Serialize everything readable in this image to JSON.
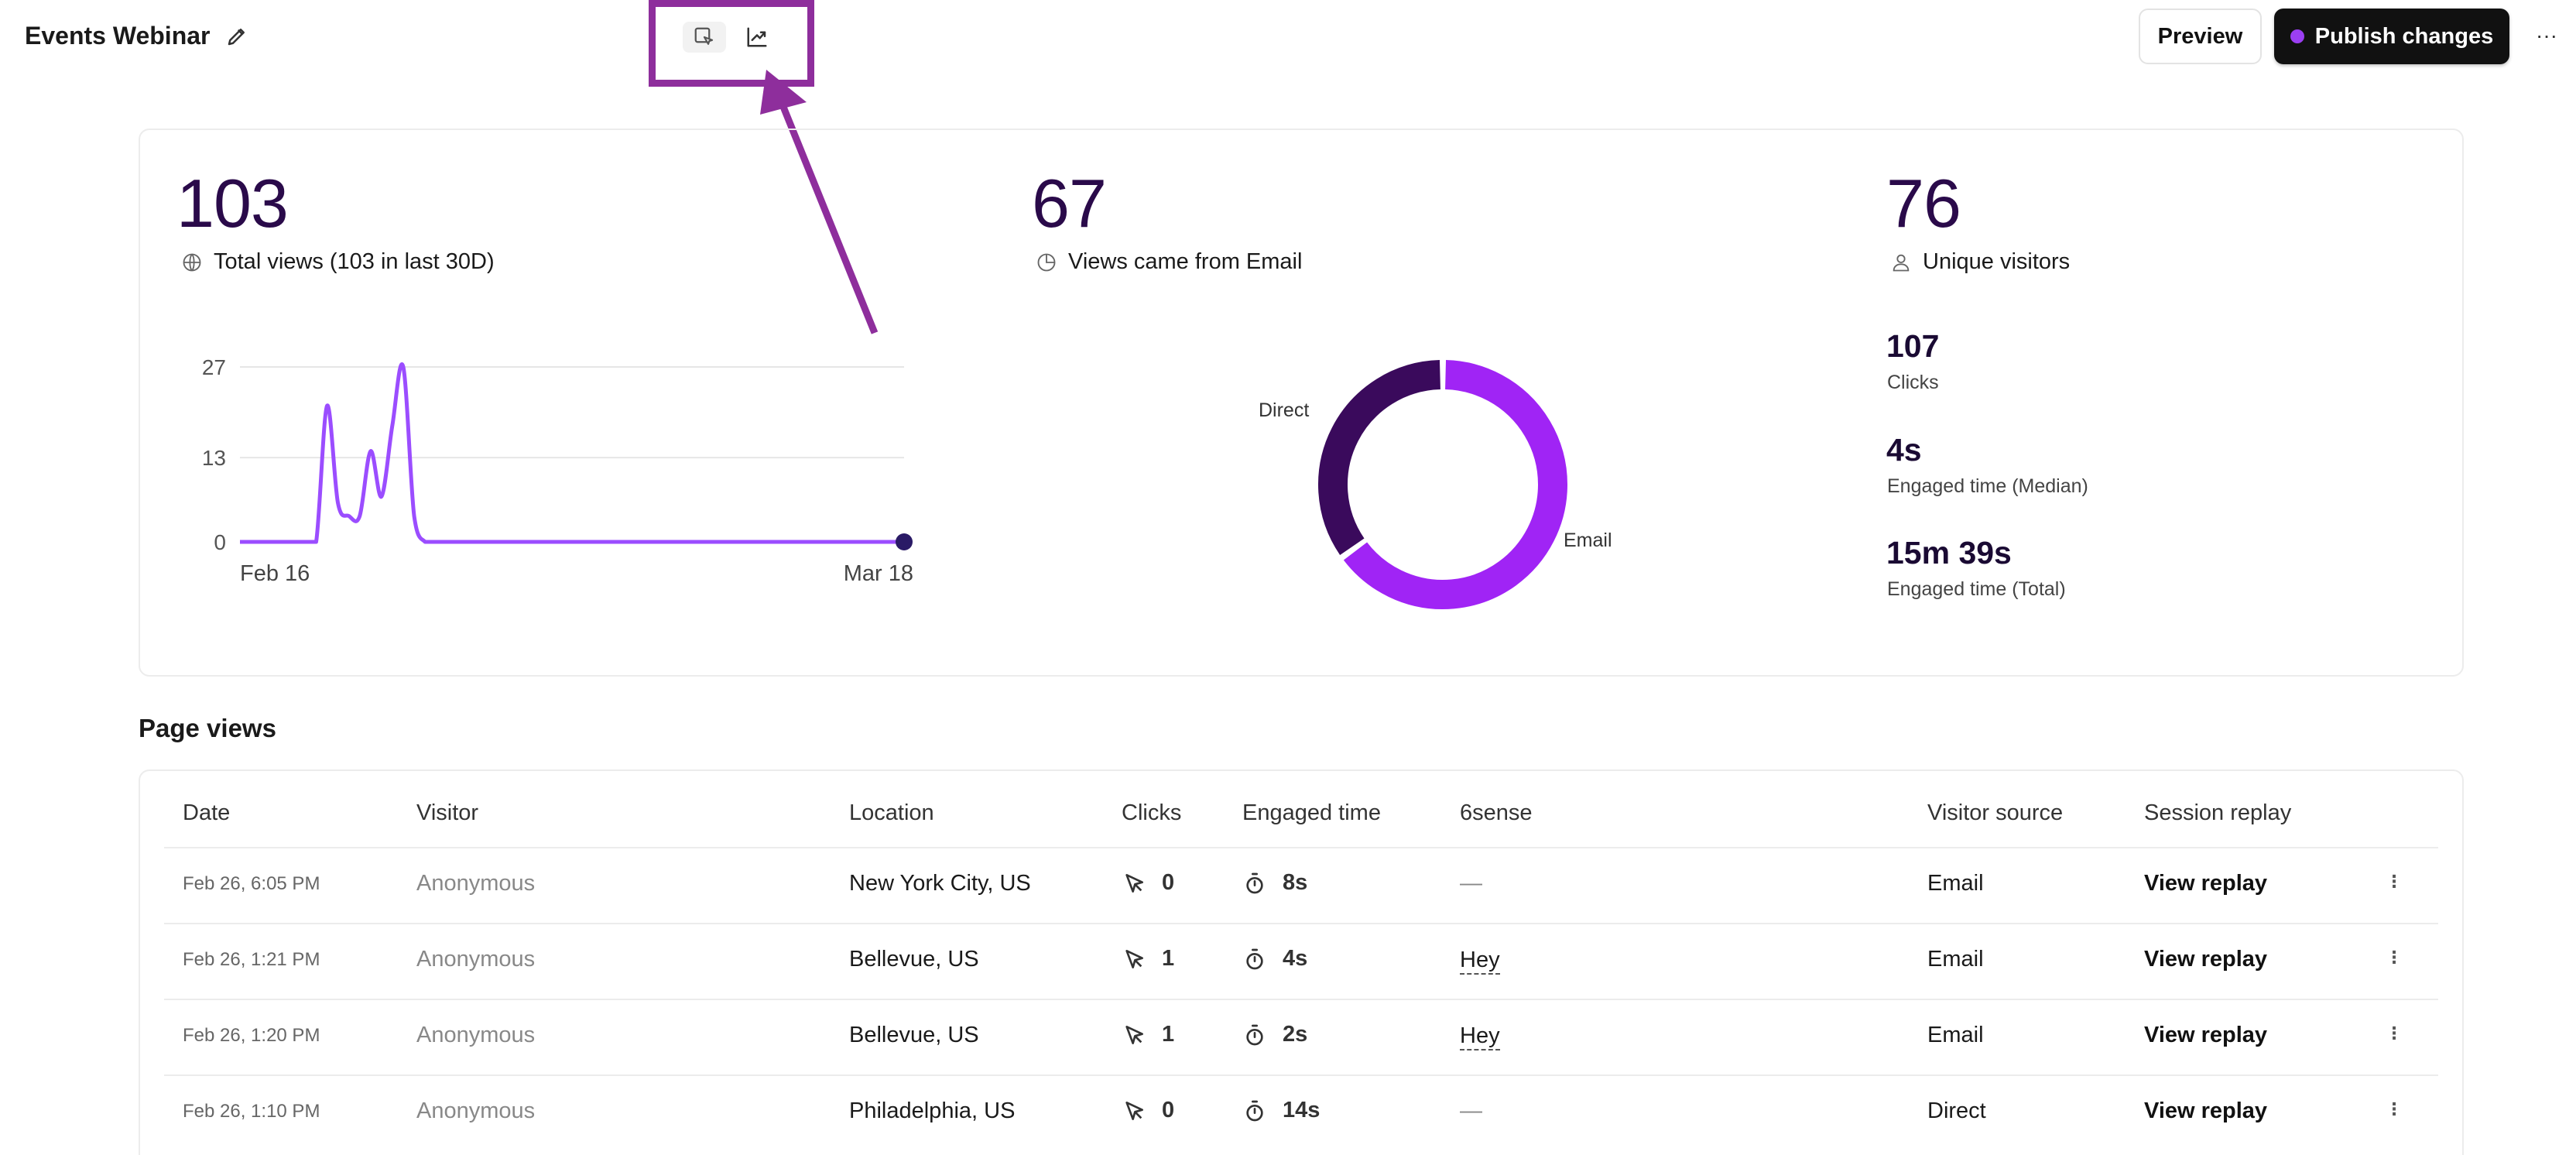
{
  "header": {
    "title": "Events Webinar",
    "preview_label": "Preview",
    "publish_label": "Publish changes",
    "more_label": "···"
  },
  "stats": {
    "total_views": {
      "value": "103",
      "label": "Total views (103 in last 30D)"
    },
    "email_views": {
      "value": "67",
      "label": "Views came from Email"
    },
    "unique_visitors": {
      "value": "76",
      "label": "Unique visitors"
    }
  },
  "chart_data": [
    {
      "type": "line",
      "x_start_label": "Feb 16",
      "x_end_label": "Mar 18",
      "y_ticks": [
        "27",
        "13",
        "0"
      ],
      "ylim": [
        0,
        27
      ],
      "series": [
        {
          "values": [
            0,
            0,
            0,
            0,
            0,
            0,
            0,
            0,
            21,
            6,
            4,
            4,
            14,
            7,
            18,
            27,
            4,
            0,
            0,
            0,
            0,
            0,
            0,
            0,
            0,
            0,
            0,
            0,
            0,
            0,
            0,
            0,
            0,
            0,
            0,
            0,
            0,
            0,
            0,
            0,
            0,
            0,
            0,
            0,
            0,
            0,
            0,
            0,
            0,
            0,
            0,
            0,
            0,
            0,
            0,
            0,
            0,
            0,
            0,
            0,
            0,
            0
          ]
        }
      ],
      "color": "#9b4dff",
      "end_marker_color": "#2a1a66"
    },
    {
      "type": "pie",
      "categories": [
        "Email",
        "Direct"
      ],
      "values": [
        67,
        36
      ],
      "colors": [
        "#a024f5",
        "#3a0a5c"
      ],
      "labels": [
        "Email",
        "Direct"
      ]
    }
  ],
  "metrics": [
    {
      "value": "107",
      "label": "Clicks"
    },
    {
      "value": "4s",
      "label": "Engaged time (Median)"
    },
    {
      "value": "15m 39s",
      "label": "Engaged time (Total)"
    }
  ],
  "page_views": {
    "title": "Page views",
    "columns": [
      "Date",
      "Visitor",
      "Location",
      "Clicks",
      "Engaged time",
      "6sense",
      "Visitor source",
      "Session replay"
    ],
    "rows": [
      {
        "date": "Feb 26, 6:05 PM",
        "visitor": "Anonymous",
        "location": "New York City, US",
        "clicks": "0",
        "engaged": "8s",
        "sixsense": "—",
        "source": "Email",
        "replay": "View replay"
      },
      {
        "date": "Feb 26, 1:21 PM",
        "visitor": "Anonymous",
        "location": "Bellevue, US",
        "clicks": "1",
        "engaged": "4s",
        "sixsense": "Hey",
        "source": "Email",
        "replay": "View replay"
      },
      {
        "date": "Feb 26, 1:20 PM",
        "visitor": "Anonymous",
        "location": "Bellevue, US",
        "clicks": "1",
        "engaged": "2s",
        "sixsense": "Hey",
        "source": "Email",
        "replay": "View replay"
      },
      {
        "date": "Feb 26, 1:10 PM",
        "visitor": "Anonymous",
        "location": "Philadelphia, US",
        "clicks": "0",
        "engaged": "14s",
        "sixsense": "—",
        "source": "Direct",
        "replay": "View replay"
      }
    ]
  },
  "colors": {
    "accent": "#9b3ff2",
    "stat_text": "#2a0a4a",
    "annotation": "#8e2e9c"
  }
}
